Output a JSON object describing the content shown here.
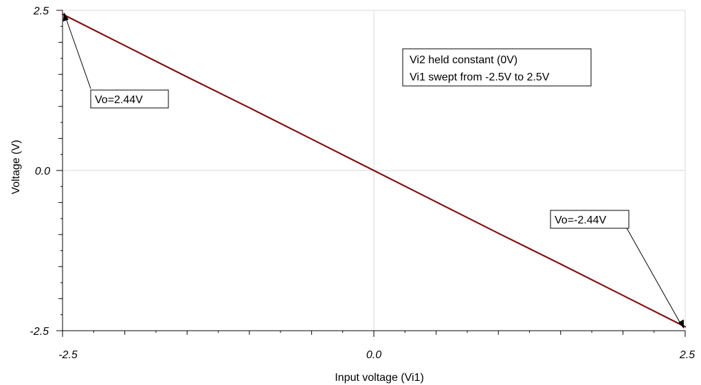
{
  "chart_data": {
    "type": "line",
    "xlabel": "Input voltage (Vi1)",
    "ylabel": "Voltage (V)",
    "xlim": [
      -2.5,
      2.5
    ],
    "ylim": [
      -2.5,
      2.5
    ],
    "x_ticks": [
      "-2.5",
      "0.0",
      "2.5"
    ],
    "y_ticks": [
      "2.5",
      "0.0",
      "-2.5"
    ],
    "grid": true,
    "series": [
      {
        "color": "#7f1010",
        "x": [
          -2.5,
          -2.0,
          -1.5,
          -1.0,
          -0.5,
          0.0,
          0.5,
          1.0,
          1.5,
          2.0,
          2.5
        ],
        "y": [
          2.44,
          1.95,
          1.46,
          0.98,
          0.49,
          0.0,
          -0.49,
          -0.98,
          -1.46,
          -1.95,
          -2.44
        ]
      }
    ],
    "annotations": {
      "info_line1": "Vi2 held constant (0V)",
      "info_line2": "Vi1 swept from -2.5V to 2.5V",
      "left_point": "Vo=2.44V",
      "right_point": "Vo=-2.44V"
    }
  }
}
